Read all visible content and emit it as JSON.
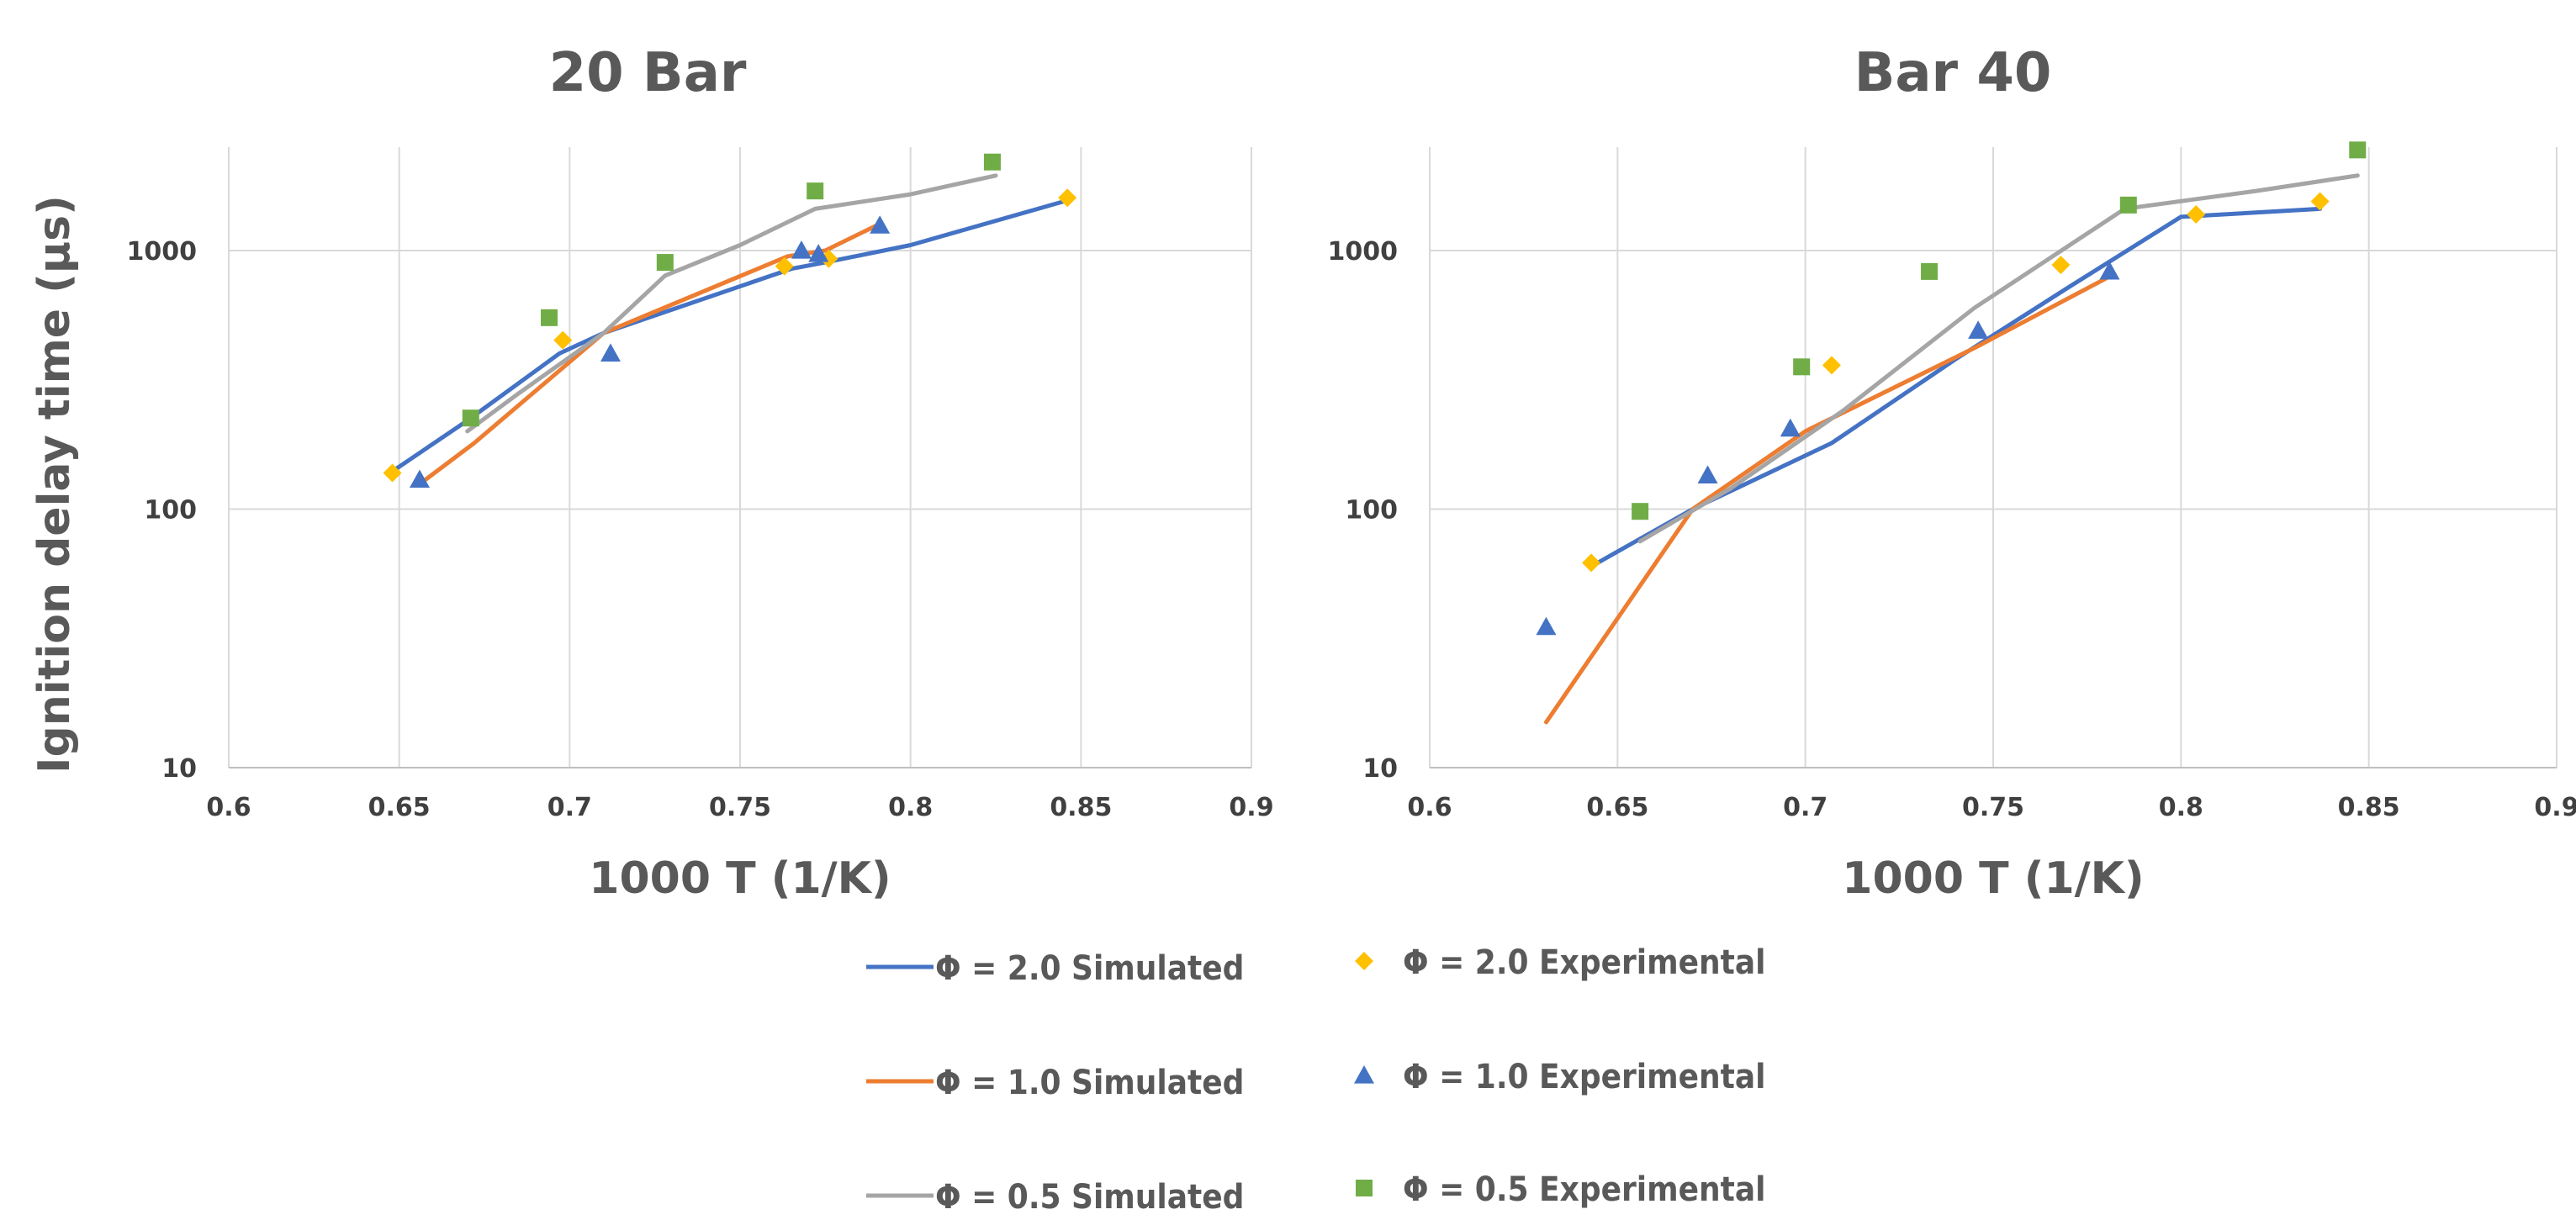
{
  "chart_data": [
    {
      "type": "line",
      "title": "20 Bar",
      "xlabel": "1000 T (1/K)",
      "ylabel": "Ignition delay time (µs)",
      "xlim": [
        0.6,
        0.9
      ],
      "ylim": [
        10,
        2500
      ],
      "yscale": "log",
      "xticks": [
        "0.6",
        "0.65",
        "0.7",
        "0.75",
        "0.8",
        "0.85",
        "0.9"
      ],
      "yticks": [
        "10",
        "100",
        "1000"
      ],
      "grid": true,
      "series": [
        {
          "name": "Φ = 2.0 Simulated",
          "color": "#4472c4",
          "kind": "line",
          "x": [
            0.648,
            0.67,
            0.697,
            0.71,
            0.765,
            0.775,
            0.8,
            0.845
          ],
          "y": [
            140,
            220,
            400,
            480,
            850,
            900,
            1050,
            1550
          ]
        },
        {
          "name": "Φ = 1.0 Simulated",
          "color": "#ed7d31",
          "kind": "line",
          "x": [
            0.656,
            0.672,
            0.71,
            0.764,
            0.775,
            0.79
          ],
          "y": [
            125,
            180,
            480,
            950,
            1000,
            1250
          ]
        },
        {
          "name": "Φ = 0.5 Simulated",
          "color": "#a5a5a5",
          "kind": "line",
          "x": [
            0.67,
            0.685,
            0.71,
            0.728,
            0.75,
            0.772,
            0.8,
            0.825
          ],
          "y": [
            200,
            280,
            480,
            800,
            1050,
            1450,
            1650,
            1950
          ]
        },
        {
          "name": "Φ = 2.0 Experimental",
          "color": "#ffc000",
          "kind": "diamond",
          "x": [
            0.648,
            0.698,
            0.763,
            0.776,
            0.846
          ],
          "y": [
            138,
            450,
            870,
            930,
            1600
          ]
        },
        {
          "name": "Φ = 1.0 Experimental",
          "color": "#4472c4",
          "kind": "triangle",
          "x": [
            0.656,
            0.712,
            0.768,
            0.773,
            0.791
          ],
          "y": [
            130,
            400,
            1000,
            970,
            1250
          ]
        },
        {
          "name": "Φ = 0.5 Experimental",
          "color": "#70ad47",
          "kind": "square",
          "x": [
            0.671,
            0.694,
            0.728,
            0.772,
            0.824
          ],
          "y": [
            225,
            550,
            900,
            1700,
            2200
          ]
        }
      ]
    },
    {
      "type": "line",
      "title": "Bar 40",
      "xlabel": "1000 T (1/K)",
      "ylabel": "",
      "xlim": [
        0.6,
        0.9
      ],
      "ylim": [
        10,
        2500
      ],
      "yscale": "log",
      "xticks": [
        "0.6",
        "0.65",
        "0.7",
        "0.75",
        "0.8",
        "0.85",
        "0.9"
      ],
      "yticks": [
        "10",
        "100",
        "1000"
      ],
      "grid": true,
      "series": [
        {
          "name": "Φ = 2.0 Simulated",
          "color": "#4472c4",
          "kind": "line",
          "x": [
            0.643,
            0.67,
            0.707,
            0.74,
            0.77,
            0.8,
            0.837
          ],
          "y": [
            60,
            100,
            180,
            380,
            720,
            1350,
            1450
          ]
        },
        {
          "name": "Φ = 1.0 Simulated",
          "color": "#ed7d31",
          "kind": "line",
          "x": [
            0.631,
            0.67,
            0.7,
            0.745,
            0.78
          ],
          "y": [
            15,
            100,
            200,
            420,
            780
          ]
        },
        {
          "name": "Φ = 0.5 Simulated",
          "color": "#a5a5a5",
          "kind": "line",
          "x": [
            0.656,
            0.68,
            0.71,
            0.745,
            0.785,
            0.82,
            0.847
          ],
          "y": [
            75,
            120,
            240,
            600,
            1450,
            1700,
            1950
          ]
        },
        {
          "name": "Φ = 2.0 Experimental",
          "color": "#ffc000",
          "kind": "diamond",
          "x": [
            0.643,
            0.707,
            0.768,
            0.804,
            0.837
          ],
          "y": [
            62,
            360,
            880,
            1380,
            1550
          ]
        },
        {
          "name": "Φ = 1.0 Experimental",
          "color": "#4472c4",
          "kind": "triangle",
          "x": [
            0.631,
            0.674,
            0.696,
            0.746,
            0.781
          ],
          "y": [
            35,
            135,
            205,
            490,
            830
          ]
        },
        {
          "name": "Φ = 0.5 Experimental",
          "color": "#70ad47",
          "kind": "square",
          "x": [
            0.656,
            0.699,
            0.733,
            0.786,
            0.847
          ],
          "y": [
            98,
            355,
            830,
            1500,
            2450
          ]
        }
      ]
    }
  ],
  "legend": [
    {
      "label": "Φ = 2.0 Simulated",
      "kind": "line",
      "color": "#4472c4"
    },
    {
      "label": "Φ = 2.0 Experimental",
      "kind": "diamond",
      "color": "#ffc000"
    },
    {
      "label": "Φ = 1.0 Simulated",
      "kind": "line",
      "color": "#ed7d31"
    },
    {
      "label": "Φ = 1.0 Experimental",
      "kind": "triangle",
      "color": "#4472c4"
    },
    {
      "label": "Φ = 0.5 Simulated",
      "kind": "line",
      "color": "#a5a5a5"
    },
    {
      "label": "Φ = 0.5 Experimental",
      "kind": "square",
      "color": "#70ad47"
    }
  ]
}
